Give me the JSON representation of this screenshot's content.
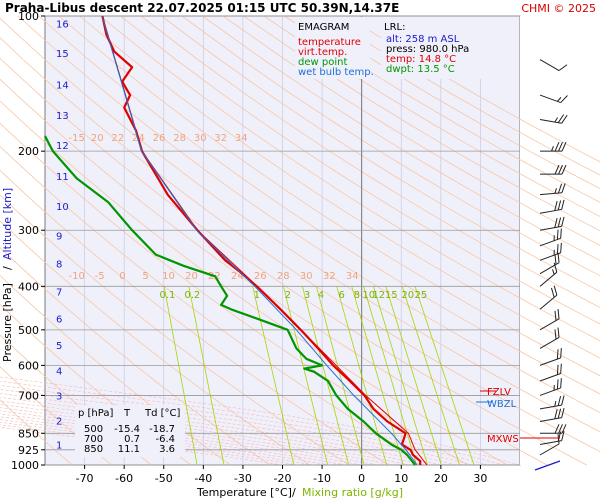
{
  "header": {
    "title": "Praha-Libus   descent   22.07.2025 01:15 UTC  50.39N,14.37E",
    "copyright": "CHMI © 2025"
  },
  "legend": {
    "title": "EMAGRAM",
    "items": [
      {
        "label": "temperature",
        "color": "#e00000"
      },
      {
        "label": "virt.temp.",
        "color": "#e00000"
      },
      {
        "label": "dew point",
        "color": "#009600"
      },
      {
        "label": "wet bulb temp.",
        "color": "#1c6fd6"
      }
    ]
  },
  "lrl": {
    "title": "LRL:",
    "lines": [
      {
        "text": "alt: 258 m ASL",
        "color": "#1a1acc"
      },
      {
        "text": "press: 980.0 hPa",
        "color": "#000000"
      },
      {
        "text": "temp: 14.8 °C",
        "color": "#e00000"
      },
      {
        "text": "dwpt: 13.5 °C",
        "color": "#009600"
      }
    ]
  },
  "levels_table": {
    "headers": [
      "p [hPa]",
      "T",
      "Td [°C]"
    ],
    "rows": [
      [
        "500",
        "-15.4",
        "-18.7"
      ],
      [
        "700",
        "0.7",
        "-6.4"
      ],
      [
        "850",
        "11.1",
        "3.6"
      ]
    ]
  },
  "markers": {
    "fzlv": "FZLV",
    "wbzl": "WBZL",
    "mxws": "MXWS"
  },
  "chart_data": {
    "type": "line",
    "title": "Praha-Libus   descent   22.07.2025 01:15 UTC  50.39N,14.37E",
    "xlabel": "Temperature [°C]",
    "xlabel2": "Mixing ratio [g/kg]",
    "ylabel": "Pressure [hPa]",
    "ylabel2": "Altitude [km]",
    "xlim": [
      -80,
      40
    ],
    "ylim": [
      1000,
      100
    ],
    "yscale": "log",
    "x_ticks": [
      -70,
      -60,
      -50,
      -40,
      -30,
      -20,
      -10,
      0,
      10,
      20,
      30
    ],
    "pressure_ticks": [
      100,
      200,
      300,
      400,
      500,
      600,
      700,
      850,
      925,
      1000
    ],
    "altitude_ticks": [
      {
        "km": 1,
        "p": 900
      },
      {
        "km": 2,
        "p": 795
      },
      {
        "km": 3,
        "p": 701
      },
      {
        "km": 4,
        "p": 616
      },
      {
        "km": 5,
        "p": 540
      },
      {
        "km": 6,
        "p": 472
      },
      {
        "km": 7,
        "p": 411
      },
      {
        "km": 8,
        "p": 356
      },
      {
        "km": 9,
        "p": 308
      },
      {
        "km": 10,
        "p": 265
      },
      {
        "km": 11,
        "p": 227
      },
      {
        "km": 12,
        "p": 194
      },
      {
        "km": 13,
        "p": 166
      },
      {
        "km": 14,
        "p": 142
      },
      {
        "km": 15,
        "p": 121
      },
      {
        "km": 16,
        "p": 104
      }
    ],
    "mixing_ratio_labels": [
      "0.1",
      "0.2",
      "1",
      "2",
      "3",
      "4",
      "6",
      "8",
      "10",
      "12",
      "15",
      "20",
      "25"
    ],
    "dry_adiabat_labels_upper": [
      "-15",
      "20",
      "22",
      "24",
      "26",
      "28",
      "30",
      "32",
      "34"
    ],
    "dry_adiabat_labels_lower": [
      "-10",
      "-5",
      "0",
      "5",
      "10",
      "20",
      "22",
      "24",
      "26",
      "28",
      "30",
      "32",
      "34"
    ],
    "grid": true,
    "series": [
      {
        "name": "temperature",
        "color": "#e00000",
        "points": [
          [
            1000,
            14.8
          ],
          [
            980,
            14.8
          ],
          [
            950,
            13.0
          ],
          [
            925,
            12.3
          ],
          [
            900,
            10.2
          ],
          [
            850,
            11.1
          ],
          [
            800,
            6.5
          ],
          [
            750,
            3.0
          ],
          [
            700,
            0.7
          ],
          [
            650,
            -3.0
          ],
          [
            600,
            -7.2
          ],
          [
            550,
            -11.0
          ],
          [
            500,
            -15.4
          ],
          [
            450,
            -20.5
          ],
          [
            400,
            -26.5
          ],
          [
            370,
            -31.0
          ],
          [
            350,
            -34.5
          ],
          [
            300,
            -41.5
          ],
          [
            250,
            -49.0
          ],
          [
            200,
            -55.5
          ],
          [
            180,
            -57.0
          ],
          [
            160,
            -60.0
          ],
          [
            150,
            -58.5
          ],
          [
            140,
            -60.5
          ],
          [
            130,
            -58.0
          ],
          [
            120,
            -62.5
          ],
          [
            110,
            -64.5
          ],
          [
            100,
            -65.5
          ]
        ]
      },
      {
        "name": "virt.temp.",
        "color": "#e00000",
        "points": [
          [
            1000,
            16.5
          ],
          [
            925,
            13.5
          ],
          [
            850,
            11.8
          ],
          [
            700,
            1.0
          ],
          [
            500,
            -15.3
          ],
          [
            400,
            -26.4
          ],
          [
            300,
            -41.5
          ],
          [
            200,
            -55.5
          ],
          [
            100,
            -65.5
          ]
        ]
      },
      {
        "name": "dew point",
        "color": "#009600",
        "points": [
          [
            1000,
            13.5
          ],
          [
            950,
            11.5
          ],
          [
            925,
            10.0
          ],
          [
            900,
            7.5
          ],
          [
            850,
            3.6
          ],
          [
            800,
            0.5
          ],
          [
            750,
            -3.5
          ],
          [
            700,
            -6.4
          ],
          [
            650,
            -8.5
          ],
          [
            620,
            -12.0
          ],
          [
            610,
            -14.5
          ],
          [
            600,
            -10.0
          ],
          [
            580,
            -14.0
          ],
          [
            550,
            -16.5
          ],
          [
            500,
            -18.7
          ],
          [
            470,
            -27.0
          ],
          [
            450,
            -33.0
          ],
          [
            440,
            -35.5
          ],
          [
            420,
            -34.0
          ],
          [
            400,
            -35.5
          ],
          [
            380,
            -37.0
          ],
          [
            360,
            -45.0
          ],
          [
            340,
            -52.0
          ],
          [
            300,
            -58.0
          ],
          [
            260,
            -64.0
          ],
          [
            230,
            -72.0
          ],
          [
            200,
            -78.0
          ],
          [
            185,
            -80.0
          ]
        ]
      },
      {
        "name": "wet bulb temp.",
        "color": "#1c6fd6",
        "points": [
          [
            1000,
            14.0
          ],
          [
            925,
            11.2
          ],
          [
            850,
            7.5
          ],
          [
            700,
            -2.0
          ],
          [
            600,
            -8.8
          ],
          [
            500,
            -16.5
          ],
          [
            400,
            -27.0
          ],
          [
            300,
            -41.7
          ],
          [
            200,
            -55.6
          ],
          [
            100,
            -65.6
          ]
        ]
      }
    ],
    "wind_barbs": [
      {
        "p": 125,
        "dir": 300,
        "speed": 10
      },
      {
        "p": 150,
        "dir": 290,
        "speed": 15
      },
      {
        "p": 170,
        "dir": 280,
        "speed": 25
      },
      {
        "p": 200,
        "dir": 270,
        "speed": 35
      },
      {
        "p": 225,
        "dir": 270,
        "speed": 30
      },
      {
        "p": 250,
        "dir": 265,
        "speed": 25
      },
      {
        "p": 275,
        "dir": 260,
        "speed": 30
      },
      {
        "p": 300,
        "dir": 260,
        "speed": 30
      },
      {
        "p": 325,
        "dir": 250,
        "speed": 25
      },
      {
        "p": 350,
        "dir": 250,
        "speed": 25
      },
      {
        "p": 375,
        "dir": 240,
        "speed": 20
      },
      {
        "p": 400,
        "dir": 230,
        "speed": 15
      },
      {
        "p": 450,
        "dir": 230,
        "speed": 20
      },
      {
        "p": 500,
        "dir": 240,
        "speed": 20
      },
      {
        "p": 550,
        "dir": 240,
        "speed": 20
      },
      {
        "p": 600,
        "dir": 250,
        "speed": 20
      },
      {
        "p": 650,
        "dir": 250,
        "speed": 20
      },
      {
        "p": 700,
        "dir": 250,
        "speed": 25
      },
      {
        "p": 750,
        "dir": 260,
        "speed": 25
      },
      {
        "p": 800,
        "dir": 260,
        "speed": 30
      },
      {
        "p": 850,
        "dir": 270,
        "speed": 30
      },
      {
        "p": 900,
        "dir": 260,
        "speed": 20
      },
      {
        "p": 950,
        "dir": 240,
        "speed": 10
      }
    ]
  }
}
